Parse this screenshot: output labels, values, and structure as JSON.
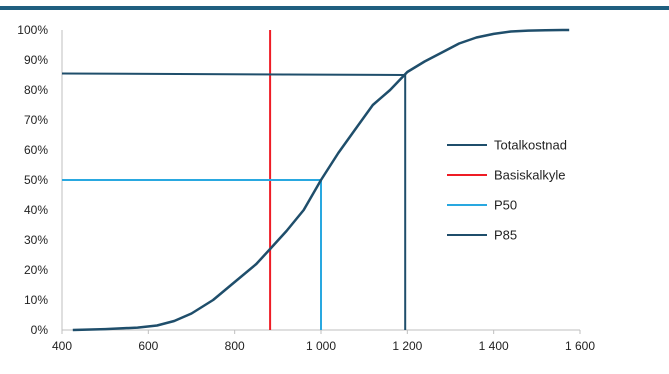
{
  "chart_data": {
    "type": "line",
    "title": "",
    "xlabel": "",
    "ylabel": "",
    "xlim": [
      400,
      1600
    ],
    "ylim": [
      0,
      100
    ],
    "x_ticks": [
      400,
      600,
      800,
      1000,
      1200,
      1400,
      1600
    ],
    "x_tick_labels": [
      "400",
      "600",
      "800",
      "1 000",
      "1 200",
      "1 400",
      "1 600"
    ],
    "y_ticks": [
      0,
      10,
      20,
      30,
      40,
      50,
      60,
      70,
      80,
      90,
      100
    ],
    "y_tick_labels": [
      "0%",
      "10%",
      "20%",
      "30%",
      "40%",
      "50%",
      "60%",
      "70%",
      "80%",
      "90%",
      "100%"
    ],
    "grid": false,
    "legend_position": "right",
    "series": [
      {
        "name": "Totalkostnad",
        "color": "#1f4e6b",
        "x": [
          425,
          500,
          575,
          620,
          660,
          700,
          750,
          800,
          850,
          882,
          920,
          960,
          1000,
          1040,
          1080,
          1120,
          1160,
          1200,
          1240,
          1280,
          1320,
          1360,
          1400,
          1440,
          1480,
          1520,
          1560,
          1575
        ],
        "y": [
          0,
          0.3,
          0.8,
          1.5,
          3,
          5.5,
          10,
          16,
          22,
          27,
          33,
          40,
          50,
          59,
          67,
          75,
          80,
          86,
          89.5,
          92.5,
          95.5,
          97.5,
          98.7,
          99.5,
          99.8,
          99.9,
          100,
          100
        ]
      },
      {
        "name": "Basiskalkyle",
        "color": "#ee1c25",
        "x": [
          882,
          882
        ],
        "y": [
          0,
          100
        ]
      },
      {
        "name": "P50",
        "color": "#29a8e0",
        "x": [
          400,
          1000,
          1000
        ],
        "y": [
          50,
          50,
          0
        ]
      },
      {
        "name": "P85",
        "color": "#1f4e6b",
        "x": [
          400,
          1195,
          1195
        ],
        "y": [
          85.5,
          85,
          0
        ]
      }
    ]
  }
}
